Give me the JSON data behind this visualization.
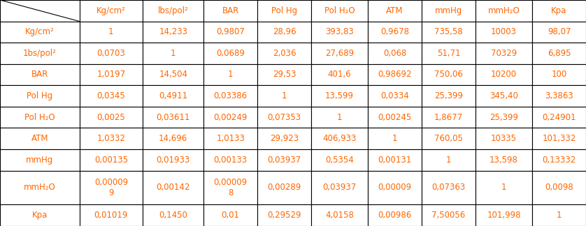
{
  "col_headers": [
    "Kg/cm²",
    "lbs/pol²",
    "BAR",
    "Pol Hg",
    "Pol H₂O",
    "ATM",
    "mmHg",
    "mmH₂O",
    "Kpa"
  ],
  "row_headers": [
    "Kg/cm²",
    "1bs/pol²",
    "BAR",
    "Pol Hg",
    "Pol H₂O",
    "ATM",
    "mmHg",
    "mmH₂O",
    "Kpa"
  ],
  "cell_data": [
    [
      "1",
      "14,233",
      "0,9807",
      "28,96",
      "393,83",
      "0,9678",
      "735,58",
      "10003",
      "98,07"
    ],
    [
      "0,0703",
      "1",
      "0,0689",
      "2,036",
      "27,689",
      "0,068",
      "51,71",
      "70329",
      "6,895"
    ],
    [
      "1,0197",
      "14,504",
      "1",
      "29,53",
      "401,6",
      "0,98692",
      "750,06",
      "10200",
      "100"
    ],
    [
      "0,0345",
      "0,4911",
      "0,03386",
      "1",
      "13,599",
      "0,0334",
      "25,399",
      "345,40",
      "3,3863"
    ],
    [
      "0,0025",
      "0,03611",
      "0,00249",
      "0,07353",
      "1",
      "0,00245",
      "1,8677",
      "25,399",
      "0,24901"
    ],
    [
      "1,0332",
      "14,696",
      "1,0133",
      "29,923",
      "406,933",
      "1",
      "760,05",
      "10335",
      "101,332"
    ],
    [
      "0,00135",
      "0,01933",
      "0,00133",
      "0,03937",
      "0,5354",
      "0,00131",
      "1",
      "13,598",
      "0,13332"
    ],
    [
      "0,00009\n9",
      "0,00142",
      "0,00009\n8",
      "0,00289",
      "0,03937",
      "0,00009",
      "0,07363",
      "1",
      "0,0098"
    ],
    [
      "0,01019",
      "0,1450",
      "0,01",
      "0,29529",
      "4,0158",
      "0,00986",
      "7,50056",
      "101,998",
      "1"
    ]
  ],
  "text_color": "#FF6600",
  "border_color": "#000000",
  "bg_color": "#FFFFFF",
  "fontsize": 8.5,
  "figsize": [
    8.38,
    3.24
  ],
  "dpi": 100,
  "col_widths_rel": [
    1.15,
    0.92,
    0.88,
    0.78,
    0.78,
    0.82,
    0.78,
    0.78,
    0.82,
    0.78
  ],
  "row_heights_rel": [
    1.0,
    1.0,
    1.0,
    1.0,
    1.0,
    1.0,
    1.0,
    1.0,
    1.6,
    1.0
  ]
}
